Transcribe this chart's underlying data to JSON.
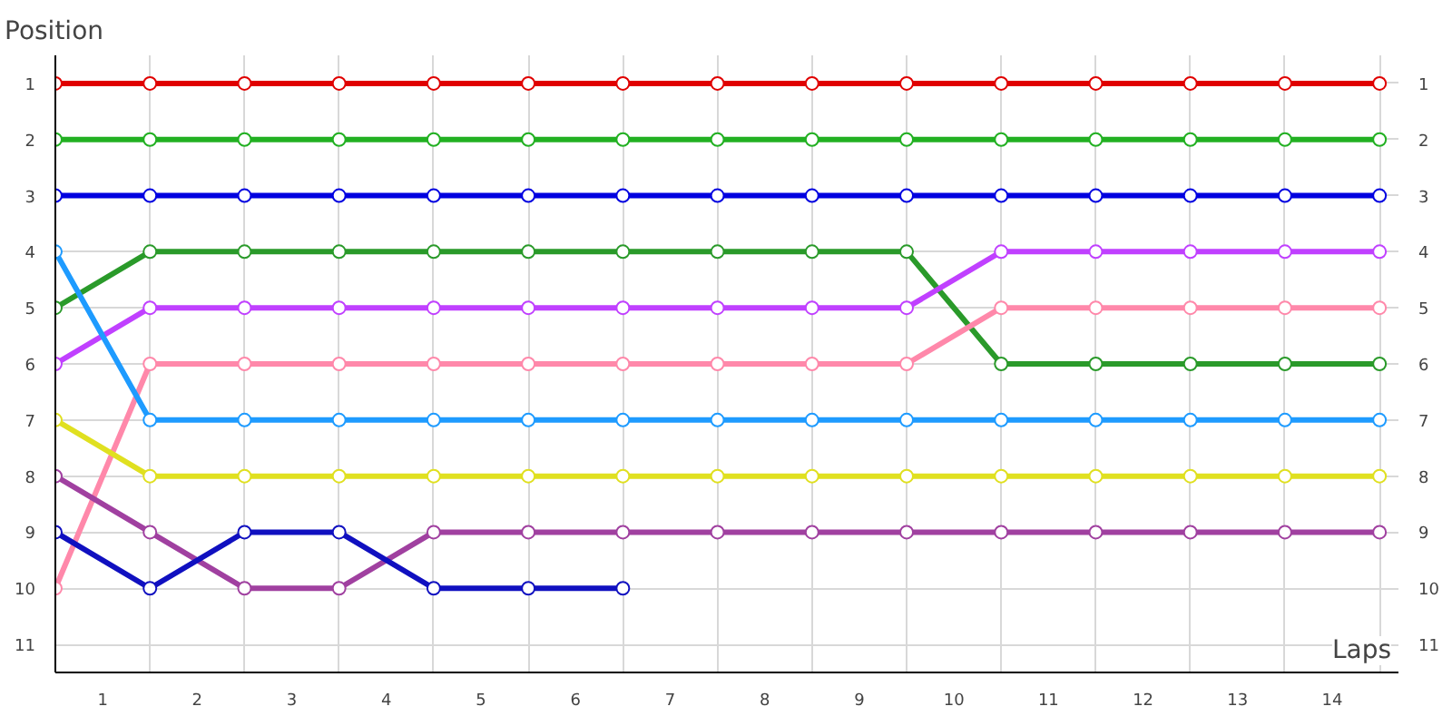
{
  "chart_data": {
    "type": "line",
    "xlabel": "Laps",
    "ylabel": "Position",
    "x": [
      0,
      1,
      2,
      3,
      4,
      5,
      6,
      7,
      8,
      9,
      10,
      11,
      12,
      13,
      14
    ],
    "xlim": [
      0,
      14.2
    ],
    "ylim": [
      11.5,
      0.5
    ],
    "y2lim": [
      11.5,
      0.5
    ],
    "xticks": [
      {
        "value": 0,
        "label": null
      },
      {
        "value": 0.5,
        "label": "1"
      },
      {
        "value": 1,
        "label": null
      },
      {
        "value": 1.5,
        "label": "2"
      },
      {
        "value": 2,
        "label": null
      },
      {
        "value": 2.5,
        "label": "3"
      },
      {
        "value": 3,
        "label": null
      },
      {
        "value": 3.5,
        "label": "4"
      },
      {
        "value": 4,
        "label": null
      },
      {
        "value": 4.5,
        "label": "5"
      },
      {
        "value": 5,
        "label": null
      },
      {
        "value": 5.5,
        "label": "6"
      },
      {
        "value": 6,
        "label": null
      },
      {
        "value": 6.5,
        "label": "7"
      },
      {
        "value": 7,
        "label": null
      },
      {
        "value": 7.5,
        "label": "8"
      },
      {
        "value": 8,
        "label": null
      },
      {
        "value": 8.5,
        "label": "9"
      },
      {
        "value": 9,
        "label": null
      },
      {
        "value": 9.5,
        "label": "10"
      },
      {
        "value": 10,
        "label": null
      },
      {
        "value": 10.5,
        "label": "11"
      },
      {
        "value": 11,
        "label": null
      },
      {
        "value": 11.5,
        "label": "12"
      },
      {
        "value": 12,
        "label": null
      },
      {
        "value": 12.5,
        "label": "13"
      },
      {
        "value": 13,
        "label": null
      },
      {
        "value": 13.5,
        "label": "14"
      },
      {
        "value": 14,
        "label": null
      }
    ],
    "yticks": [
      1,
      2,
      3,
      4,
      5,
      6,
      7,
      8,
      9,
      10,
      11
    ],
    "y2ticks": [
      1,
      2,
      3,
      4,
      5,
      6,
      7,
      8,
      9,
      10,
      11
    ],
    "grid": true,
    "marker": "circle",
    "line_style": "solid",
    "series": [
      {
        "color": "#e00000",
        "values": [
          1,
          1,
          1,
          1,
          1,
          1,
          1,
          1,
          1,
          1,
          1,
          1,
          1,
          1,
          1
        ]
      },
      {
        "color": "#22b022",
        "values": [
          2,
          2,
          2,
          2,
          2,
          2,
          2,
          2,
          2,
          2,
          2,
          2,
          2,
          2,
          2
        ]
      },
      {
        "color": "#0000e0",
        "values": [
          3,
          3,
          3,
          3,
          3,
          3,
          3,
          3,
          3,
          3,
          3,
          3,
          3,
          3,
          3
        ]
      },
      {
        "color": "#2a9a2a",
        "values": [
          5,
          4,
          4,
          4,
          4,
          4,
          4,
          4,
          4,
          4,
          6,
          6,
          6,
          6,
          6
        ]
      },
      {
        "color": "#c040ff",
        "values": [
          6,
          5,
          5,
          5,
          5,
          5,
          5,
          5,
          5,
          5,
          4,
          4,
          4,
          4,
          4
        ]
      },
      {
        "color": "#ff88aa",
        "values": [
          10,
          6,
          6,
          6,
          6,
          6,
          6,
          6,
          6,
          6,
          5,
          5,
          5,
          5,
          5
        ]
      },
      {
        "color": "#1e9bff",
        "values": [
          4,
          7,
          7,
          7,
          7,
          7,
          7,
          7,
          7,
          7,
          7,
          7,
          7,
          7,
          7
        ]
      },
      {
        "color": "#e0e020",
        "values": [
          7,
          8,
          8,
          8,
          8,
          8,
          8,
          8,
          8,
          8,
          8,
          8,
          8,
          8,
          8
        ]
      },
      {
        "color": "#a040a0",
        "values": [
          8,
          9,
          10,
          10,
          9,
          9,
          9,
          9,
          9,
          9,
          9,
          9,
          9,
          9,
          9
        ]
      },
      {
        "color": "#1010c0",
        "values": [
          9,
          10,
          9,
          9,
          10,
          10,
          10,
          null,
          null,
          null,
          null,
          null,
          null,
          null,
          null
        ]
      }
    ]
  }
}
